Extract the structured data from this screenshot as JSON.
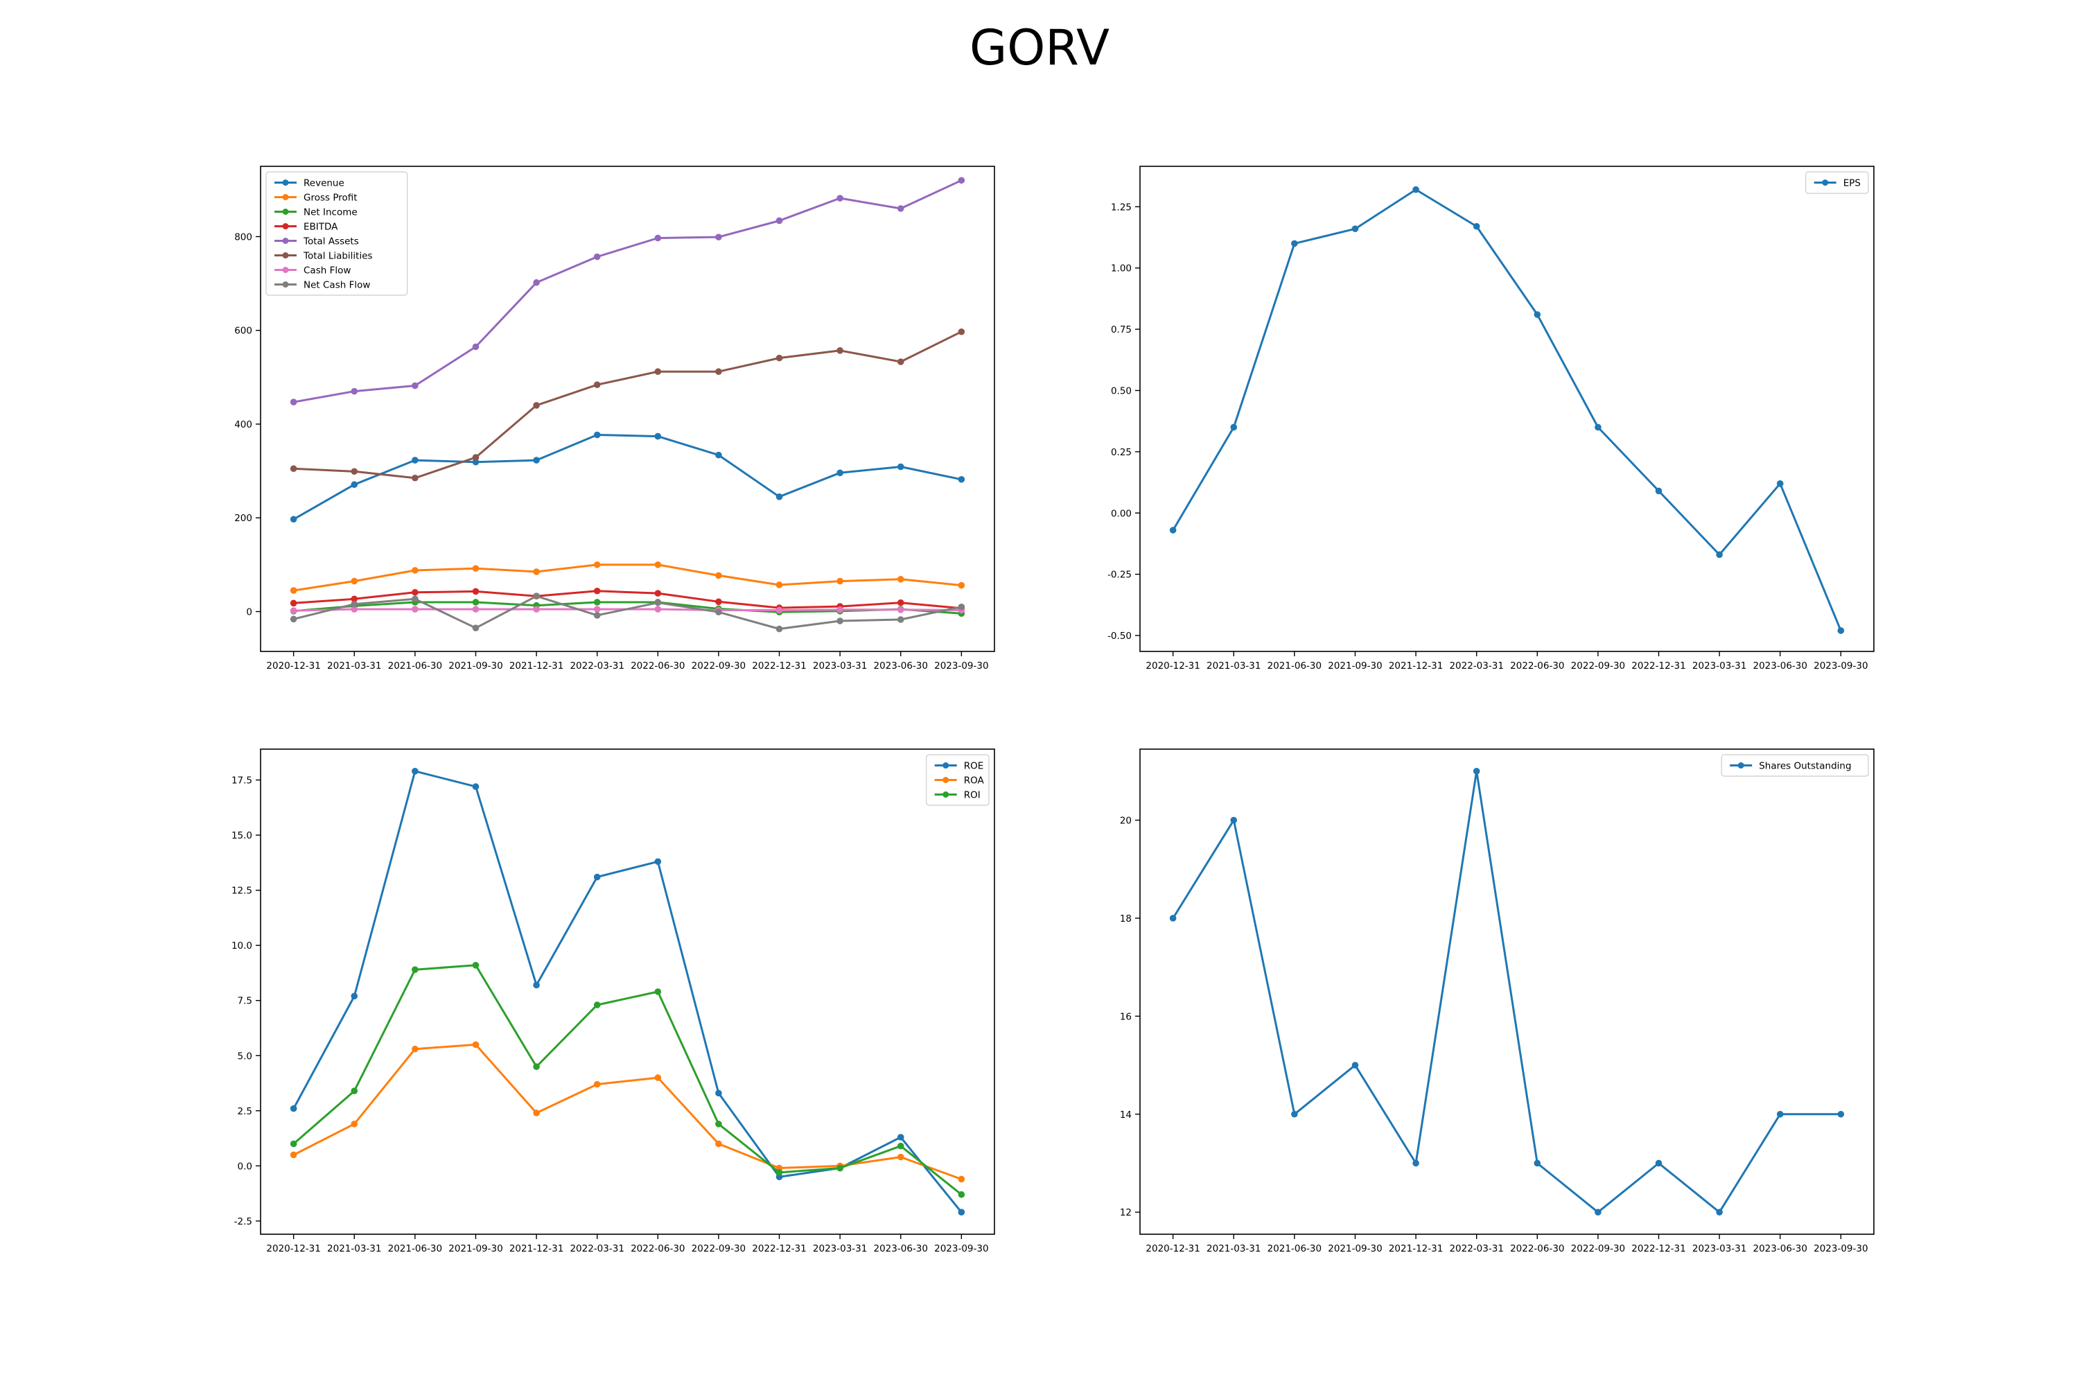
{
  "page_title": "GORV",
  "chart_data": [
    {
      "type": "line",
      "categories": [
        "2020-12-31",
        "2021-03-31",
        "2021-06-30",
        "2021-09-30",
        "2021-12-31",
        "2022-03-31",
        "2022-06-30",
        "2022-09-30",
        "2022-12-31",
        "2023-03-31",
        "2023-06-30",
        "2023-09-30"
      ],
      "ylim": [
        -85,
        950
      ],
      "yticks": [
        0,
        200,
        400,
        600,
        800
      ],
      "ytick_labels": [
        "0",
        "200",
        "400",
        "600",
        "800"
      ],
      "legend_position": "upper-left",
      "grid": false,
      "series": [
        {
          "name": "Revenue",
          "color": "#1f77b4",
          "values": [
            197,
            271,
            323,
            319,
            323,
            377,
            374,
            334,
            245,
            296,
            309,
            282
          ]
        },
        {
          "name": "Gross Profit",
          "color": "#ff7f0e",
          "values": [
            45,
            65,
            88,
            92,
            85,
            100,
            100,
            77,
            57,
            65,
            69,
            56
          ]
        },
        {
          "name": "Net Income",
          "color": "#2ca02c",
          "values": [
            1,
            12,
            20,
            20,
            13,
            20,
            20,
            6,
            -1,
            1,
            5,
            -4
          ]
        },
        {
          "name": "EBITDA",
          "color": "#d62728",
          "values": [
            18,
            27,
            41,
            43,
            33,
            44,
            39,
            21,
            8,
            11,
            19,
            7
          ]
        },
        {
          "name": "Total Assets",
          "color": "#9467bd",
          "values": [
            447,
            470,
            482,
            565,
            702,
            757,
            797,
            799,
            834,
            882,
            860,
            920
          ]
        },
        {
          "name": "Total Liabilities",
          "color": "#8c564b",
          "values": [
            305,
            299,
            285,
            329,
            440,
            484,
            512,
            512,
            541,
            557,
            533,
            597
          ]
        },
        {
          "name": "Cash Flow",
          "color": "#e377c2",
          "values": [
            2,
            5,
            5,
            5,
            5,
            5,
            5,
            3,
            3,
            4,
            4,
            3
          ]
        },
        {
          "name": "Net Cash Flow",
          "color": "#7f7f7f",
          "values": [
            -16,
            16,
            27,
            -35,
            33,
            -8,
            19,
            -1,
            -37,
            -20,
            -17,
            10
          ]
        }
      ]
    },
    {
      "type": "line",
      "categories": [
        "2020-12-31",
        "2021-03-31",
        "2021-06-30",
        "2021-09-30",
        "2021-12-31",
        "2022-03-31",
        "2022-06-30",
        "2022-09-30",
        "2022-12-31",
        "2023-03-31",
        "2023-06-30",
        "2023-09-30"
      ],
      "ylim": [
        -0.565,
        1.415
      ],
      "yticks": [
        -0.5,
        -0.25,
        0.0,
        0.25,
        0.5,
        0.75,
        1.0,
        1.25
      ],
      "ytick_labels": [
        "-0.50",
        "-0.25",
        "0.00",
        "0.25",
        "0.50",
        "0.75",
        "1.00",
        "1.25"
      ],
      "legend_position": "upper-right",
      "grid": false,
      "series": [
        {
          "name": "EPS",
          "color": "#1f77b4",
          "values": [
            -0.07,
            0.35,
            1.1,
            1.16,
            1.32,
            1.17,
            0.81,
            0.35,
            0.09,
            -0.17,
            0.12,
            -0.48
          ]
        }
      ]
    },
    {
      "type": "line",
      "categories": [
        "2020-12-31",
        "2021-03-31",
        "2021-06-30",
        "2021-09-30",
        "2021-12-31",
        "2022-03-31",
        "2022-06-30",
        "2022-09-30",
        "2022-12-31",
        "2023-03-31",
        "2023-06-30",
        "2023-09-30"
      ],
      "ylim": [
        -3.1,
        18.9
      ],
      "yticks": [
        -2.5,
        0.0,
        2.5,
        5.0,
        7.5,
        10.0,
        12.5,
        15.0,
        17.5
      ],
      "ytick_labels": [
        "-2.5",
        "0.0",
        "2.5",
        "5.0",
        "7.5",
        "10.0",
        "12.5",
        "15.0",
        "17.5"
      ],
      "legend_position": "upper-right",
      "grid": false,
      "series": [
        {
          "name": "ROE",
          "color": "#1f77b4",
          "values": [
            2.6,
            7.7,
            17.9,
            17.2,
            8.2,
            13.1,
            13.8,
            3.3,
            -0.5,
            -0.1,
            1.3,
            -2.1
          ]
        },
        {
          "name": "ROA",
          "color": "#ff7f0e",
          "values": [
            0.5,
            1.9,
            5.3,
            5.5,
            2.4,
            3.7,
            4.0,
            1.0,
            -0.1,
            0.0,
            0.4,
            -0.6
          ]
        },
        {
          "name": "ROI",
          "color": "#2ca02c",
          "values": [
            1.0,
            3.4,
            8.9,
            9.1,
            4.5,
            7.3,
            7.9,
            1.9,
            -0.3,
            -0.1,
            0.9,
            -1.3
          ]
        }
      ]
    },
    {
      "type": "line",
      "categories": [
        "2020-12-31",
        "2021-03-31",
        "2021-06-30",
        "2021-09-30",
        "2021-12-31",
        "2022-03-31",
        "2022-06-30",
        "2022-09-30",
        "2022-12-31",
        "2023-03-31",
        "2023-06-30",
        "2023-09-30"
      ],
      "ylim": [
        11.55,
        21.45
      ],
      "yticks": [
        12,
        14,
        16,
        18,
        20
      ],
      "ytick_labels": [
        "12",
        "14",
        "16",
        "18",
        "20"
      ],
      "legend_position": "upper-right",
      "grid": false,
      "series": [
        {
          "name": "Shares Outstanding",
          "color": "#1f77b4",
          "values": [
            18,
            20,
            14,
            15,
            13,
            21,
            13,
            12,
            13,
            12,
            14,
            14
          ]
        }
      ]
    }
  ]
}
